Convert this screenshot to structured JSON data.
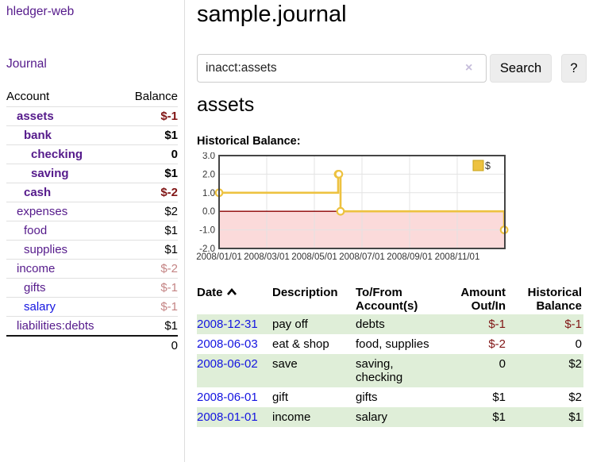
{
  "sidebar": {
    "app_title": "hledger-web",
    "nav_journal": "Journal",
    "account_header": "Account",
    "balance_header": "Balance",
    "accounts": [
      {
        "name": "assets",
        "balance": "$-1",
        "depth": 0,
        "bold": true
      },
      {
        "name": "bank",
        "balance": "$1",
        "depth": 1,
        "bold": true
      },
      {
        "name": "checking",
        "balance": "0",
        "depth": 2,
        "bold": true
      },
      {
        "name": "saving",
        "balance": "$1",
        "depth": 2,
        "bold": true
      },
      {
        "name": "cash",
        "balance": "$-2",
        "depth": 1,
        "bold": true
      },
      {
        "name": "expenses",
        "balance": "$2",
        "depth": 0,
        "bold": false
      },
      {
        "name": "food",
        "balance": "$1",
        "depth": 1,
        "bold": false
      },
      {
        "name": "supplies",
        "balance": "$1",
        "depth": 1,
        "bold": false
      },
      {
        "name": "income",
        "balance": "$-2",
        "depth": 0,
        "bold": false
      },
      {
        "name": "gifts",
        "balance": "$-1",
        "depth": 1,
        "bold": false
      },
      {
        "name": "salary",
        "balance": "$-1",
        "depth": 1,
        "bold": false,
        "blue": true
      },
      {
        "name": "liabilities:debts",
        "balance": "$1",
        "depth": 0,
        "bold": false
      }
    ],
    "total": "0"
  },
  "main": {
    "title": "sample.journal",
    "search": {
      "value": "inacct:assets",
      "clear_icon": "×",
      "search_button": "Search",
      "help_button": "?"
    },
    "heading": "assets",
    "chart_title": "Historical Balance:"
  },
  "chart_data": {
    "type": "line",
    "title": "Historical Balance:",
    "step": true,
    "series": [
      {
        "name": "$",
        "color": "#EDC240",
        "points": [
          {
            "date": "2008-01-01",
            "m": 0,
            "value": 1
          },
          {
            "date": "2008-06-01",
            "m": 5.0,
            "value": 2
          },
          {
            "date": "2008-06-02",
            "m": 5.03,
            "value": 2
          },
          {
            "date": "2008-06-03",
            "m": 5.1,
            "value": 0
          },
          {
            "date": "2008-12-31",
            "m": 11.97,
            "value": -1
          }
        ]
      }
    ],
    "ylim": [
      -2,
      3
    ],
    "xlim_months": [
      0,
      12
    ],
    "y_ticks": [
      "3.0",
      "2.0",
      "1.0",
      "0.0",
      "-1.0",
      "-2.0"
    ],
    "y_tick_values": [
      3,
      2,
      1,
      0,
      -1,
      -2
    ],
    "x_ticks": [
      {
        "m": 0,
        "label": "2008/01/01"
      },
      {
        "m": 2,
        "label": "2008/03/01"
      },
      {
        "m": 4,
        "label": "2008/05/01"
      },
      {
        "m": 6,
        "label": "2008/07/01"
      },
      {
        "m": 8,
        "label": "2008/09/01"
      },
      {
        "m": 10,
        "label": "2008/11/01"
      }
    ],
    "grid": true,
    "zero_line_color": "#8b0000",
    "below_zero_fill": "#fbdada",
    "border_color": "#454545",
    "legend": {
      "label": "$",
      "position": "top-right"
    }
  },
  "register": {
    "headers": {
      "date": "Date",
      "description": "Description",
      "accounts": "To/From Account(s)",
      "amount": "Amount Out/In",
      "balance": "Historical Balance"
    },
    "sort": {
      "column": "date",
      "direction": "asc"
    },
    "rows": [
      {
        "date": "2008-12-31",
        "description": "pay off",
        "accounts": "debts",
        "amount": "$-1",
        "balance": "$-1",
        "shaded": true
      },
      {
        "date": "2008-06-03",
        "description": "eat & shop",
        "accounts": "food, supplies",
        "amount": "$-2",
        "balance": "0",
        "shaded": false
      },
      {
        "date": "2008-06-02",
        "description": "save",
        "accounts": "saving, checking",
        "amount": "0",
        "balance": "$2",
        "shaded": true
      },
      {
        "date": "2008-06-01",
        "description": "gift",
        "accounts": "gifts",
        "amount": "$1",
        "balance": "$2",
        "shaded": false
      },
      {
        "date": "2008-01-01",
        "description": "income",
        "accounts": "salary",
        "amount": "$1",
        "balance": "$1",
        "shaded": true
      }
    ]
  }
}
